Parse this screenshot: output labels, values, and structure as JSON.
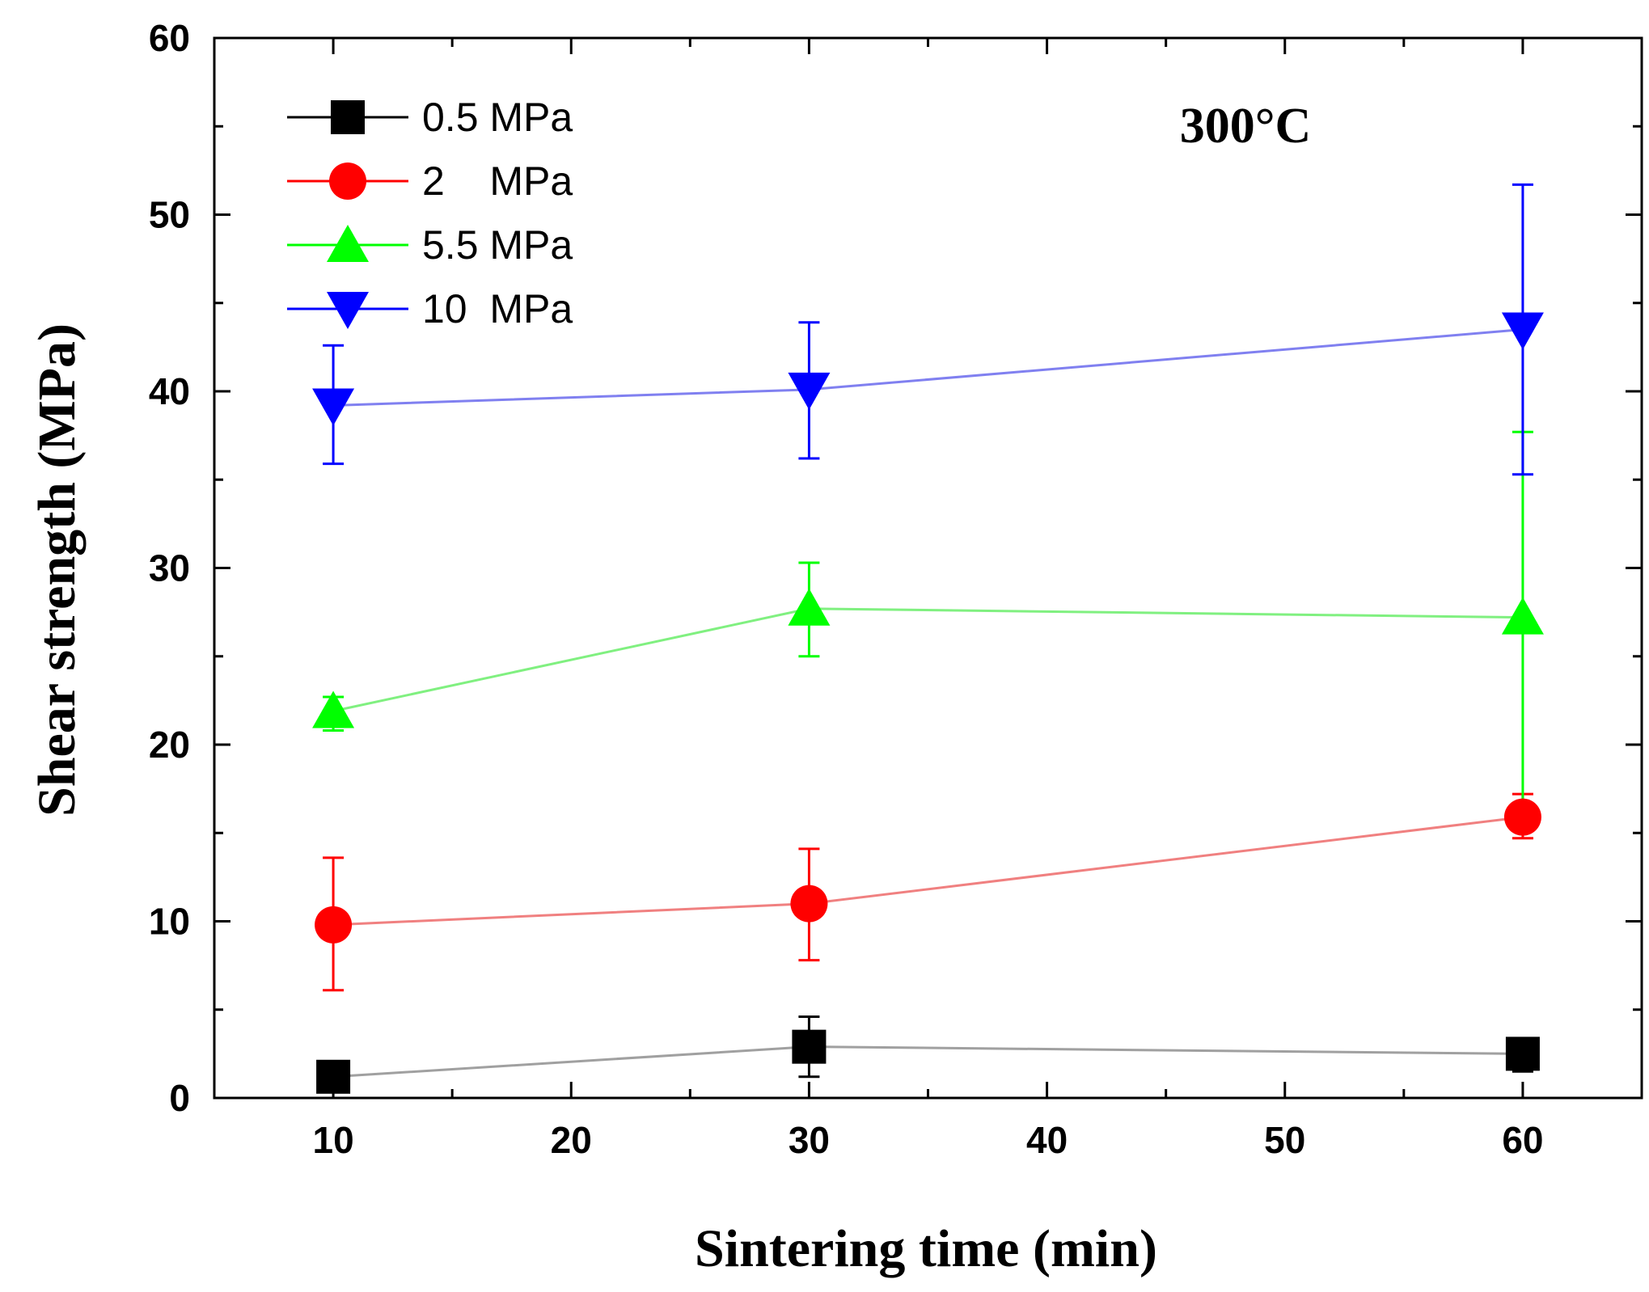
{
  "chart_data": {
    "type": "line",
    "title": "",
    "annotation": "300°C",
    "xlabel": "Sintering time (min)",
    "ylabel": "Shear strength (MPa)",
    "xlim": [
      5,
      65
    ],
    "ylim": [
      0,
      60
    ],
    "xticks": [
      10,
      20,
      30,
      40,
      50,
      60
    ],
    "yticks": [
      0,
      10,
      20,
      30,
      40,
      50,
      60
    ],
    "grid": false,
    "legend_position": "top-left",
    "x": [
      10,
      30,
      60
    ],
    "series": [
      {
        "name": "0.5 MPa",
        "color": "#000000",
        "line_color": "#a0a0a0",
        "marker": "square",
        "values": [
          1.2,
          2.9,
          2.5
        ],
        "error_upper": [
          1.2,
          4.6,
          2.6
        ],
        "error_lower": [
          1.2,
          1.2,
          1.5
        ]
      },
      {
        "name": "2    MPa",
        "color": "#ff0000",
        "line_color": "#f08080",
        "marker": "circle",
        "values": [
          9.8,
          11.0,
          15.9
        ],
        "error_upper": [
          13.6,
          14.1,
          17.2
        ],
        "error_lower": [
          6.1,
          7.8,
          14.7
        ]
      },
      {
        "name": "5.5 MPa",
        "color": "#00ff00",
        "line_color": "#80f080",
        "marker": "triangle-up",
        "values": [
          21.9,
          27.7,
          27.2
        ],
        "error_upper": [
          22.7,
          30.3,
          37.7
        ],
        "error_lower": [
          20.8,
          25.0,
          16.6
        ]
      },
      {
        "name": "10  MPa",
        "color": "#0000ff",
        "line_color": "#8080f0",
        "marker": "triangle-down",
        "values": [
          39.2,
          40.1,
          43.5
        ],
        "error_upper": [
          42.6,
          43.9,
          51.7
        ],
        "error_lower": [
          35.9,
          36.2,
          35.3
        ]
      }
    ]
  }
}
